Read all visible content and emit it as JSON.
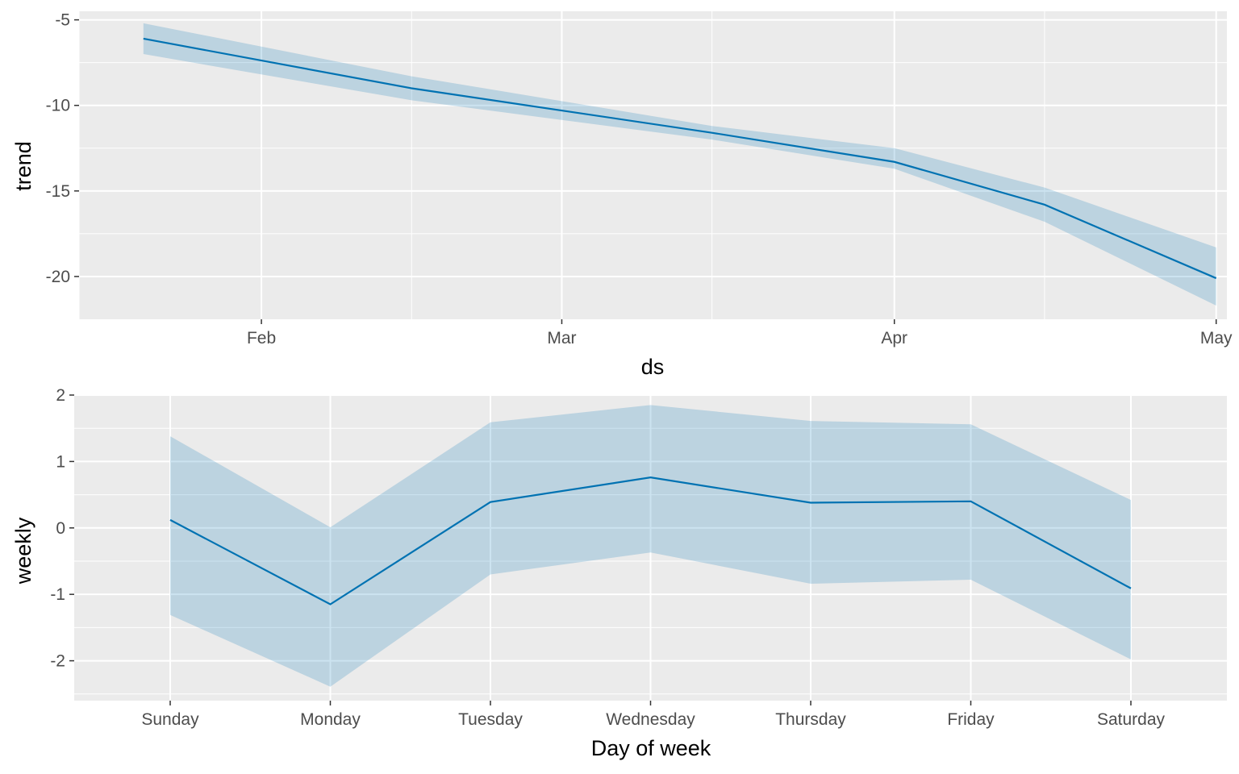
{
  "colors": {
    "panel_background": "#ebebeb",
    "grid": "#ffffff",
    "line": "#0072b2",
    "ribbon": "#0072b2",
    "tick_text": "#4d4d4d",
    "tick_mark": "#333333"
  },
  "chart_data": [
    {
      "type": "line",
      "x_scale": "date",
      "x": [
        "2023-01-21",
        "2023-02-15",
        "2023-03-15",
        "2023-04-01",
        "2023-04-15",
        "2023-05-01"
      ],
      "series": [
        {
          "values": [
            -6.1,
            -9.0,
            -11.6,
            -13.3,
            -15.8,
            -20.1
          ],
          "lower": [
            -7.0,
            -9.7,
            -12.0,
            -13.7,
            -16.8,
            -21.7
          ],
          "upper": [
            -5.2,
            -8.3,
            -11.2,
            -12.5,
            -14.8,
            -18.3
          ]
        }
      ],
      "xlabel": "ds",
      "ylabel": "trend",
      "x_ticks": [
        {
          "date": "2023-02-01",
          "label": "Feb"
        },
        {
          "date": "2023-03-01",
          "label": "Mar"
        },
        {
          "date": "2023-04-01",
          "label": "Apr"
        },
        {
          "date": "2023-05-01",
          "label": "May"
        }
      ],
      "x_minor_ticks": [
        "2023-01-15",
        "2023-02-15",
        "2023-03-15",
        "2023-04-15"
      ],
      "xlim": [
        "2023-01-15",
        "2023-05-02"
      ],
      "y_ticks": [
        -5,
        -10,
        -15,
        -20
      ],
      "y_minor_ticks": [
        -7.5,
        -12.5,
        -17.5
      ],
      "ylim": [
        -22.5,
        -4.5
      ],
      "grid": true,
      "legend": "none"
    },
    {
      "type": "line",
      "categories": [
        "Sunday",
        "Monday",
        "Tuesday",
        "Wednesday",
        "Thursday",
        "Friday",
        "Saturday"
      ],
      "series": [
        {
          "values": [
            0.12,
            -1.15,
            0.39,
            0.76,
            0.38,
            0.4,
            -0.91
          ],
          "lower": [
            -1.31,
            -2.39,
            -0.7,
            -0.37,
            -0.84,
            -0.78,
            -1.98
          ],
          "upper": [
            1.38,
            0.01,
            1.59,
            1.85,
            1.61,
            1.56,
            0.42
          ]
        }
      ],
      "xlabel": "Day of week",
      "ylabel": "weekly",
      "y_ticks": [
        2,
        1,
        0,
        -1,
        -2
      ],
      "y_minor_ticks": [
        1.5,
        0.5,
        -0.5,
        -1.5,
        -2.5
      ],
      "ylim": [
        -2.6,
        2.0
      ],
      "grid": true,
      "legend": "none"
    }
  ]
}
